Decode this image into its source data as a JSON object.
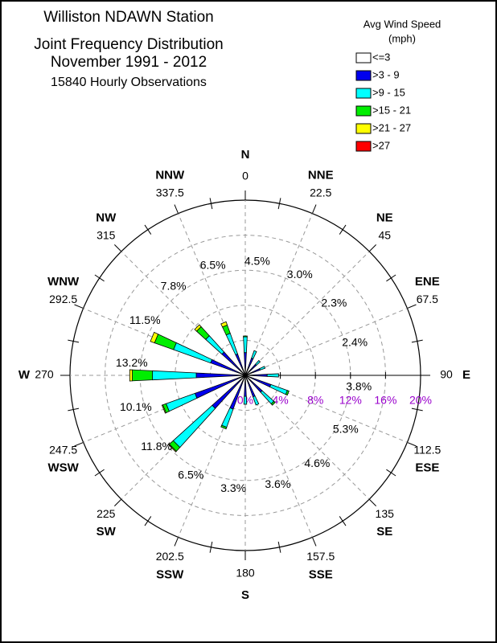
{
  "chart_data": {
    "type": "windrose",
    "title": [
      "Williston NDAWN Station",
      "Joint Frequency Distribution",
      "November 1991 - 2012"
    ],
    "subtitle": "15840 Hourly Observations",
    "legend_title": [
      "Avg Wind Speed",
      "(mph)"
    ],
    "categories": [
      "N",
      "NNE",
      "NE",
      "ENE",
      "E",
      "ESE",
      "SE",
      "SSE",
      "S",
      "SSW",
      "SW",
      "WSW",
      "W",
      "WNW",
      "NW",
      "NNW"
    ],
    "angles": [
      0,
      22.5,
      45,
      67.5,
      90,
      112.5,
      135,
      157.5,
      180,
      202.5,
      225,
      247.5,
      270,
      292.5,
      315,
      337.5
    ],
    "totals": [
      4.5,
      3.0,
      2.3,
      2.4,
      3.8,
      5.3,
      4.6,
      3.6,
      3.3,
      6.5,
      11.8,
      10.1,
      13.2,
      11.5,
      7.8,
      6.5
    ],
    "total_labels": [
      "4.5%",
      "3.0%",
      "2.3%",
      "2.4%",
      "3.8%",
      "5.3%",
      "4.6%",
      "3.6%",
      "3.3%",
      "6.5%",
      "11.8%",
      "10.1%",
      "13.2%",
      "11.5%",
      "7.8%",
      "6.5%"
    ],
    "series": [
      {
        "name": "<=3",
        "color": "#ffffff",
        "values": [
          0.1,
          0.1,
          0.1,
          0.1,
          0.1,
          0.1,
          0.1,
          0.1,
          0.1,
          0.1,
          0.1,
          0.1,
          0.1,
          0.2,
          0.1,
          0.1
        ]
      },
      {
        "name": ">3 - 9",
        "color": "#0000ee",
        "values": [
          2.5,
          2.0,
          1.6,
          1.7,
          2.4,
          3.0,
          2.5,
          2.5,
          2.3,
          4.0,
          5.0,
          6.0,
          5.5,
          4.0,
          3.5,
          2.5
        ]
      },
      {
        "name": ">9 - 15",
        "color": "#00ffff",
        "values": [
          1.8,
          0.9,
          0.6,
          0.6,
          1.3,
          2.0,
          1.8,
          1.0,
          0.9,
          2.2,
          6.0,
          3.5,
          5.0,
          4.5,
          2.5,
          2.5
        ]
      },
      {
        "name": ">15 - 21",
        "color": "#00ee00",
        "values": [
          0.1,
          0,
          0,
          0,
          0,
          0.2,
          0.2,
          0,
          0,
          0.2,
          0.6,
          0.4,
          2.3,
          2.3,
          1.4,
          1.0
        ]
      },
      {
        "name": ">21 - 27",
        "color": "#ffff00",
        "values": [
          0,
          0,
          0,
          0,
          0,
          0,
          0,
          0,
          0,
          0,
          0.1,
          0.1,
          0.3,
          0.5,
          0.3,
          0.4
        ]
      },
      {
        "name": ">27",
        "color": "#ff0000",
        "values": [
          0,
          0,
          0,
          0,
          0,
          0,
          0,
          0,
          0,
          0,
          0,
          0,
          0,
          0,
          0,
          0
        ]
      }
    ],
    "rlim": [
      0,
      20
    ],
    "rticks": [
      {
        "value": 0,
        "label": "0%"
      },
      {
        "value": 4,
        "label": "4%"
      },
      {
        "value": 8,
        "label": "8%"
      },
      {
        "value": 12,
        "label": "12%"
      },
      {
        "value": 16,
        "label": "16%"
      },
      {
        "value": 20,
        "label": "20%"
      }
    ],
    "rtick_color": "#9900cc"
  }
}
